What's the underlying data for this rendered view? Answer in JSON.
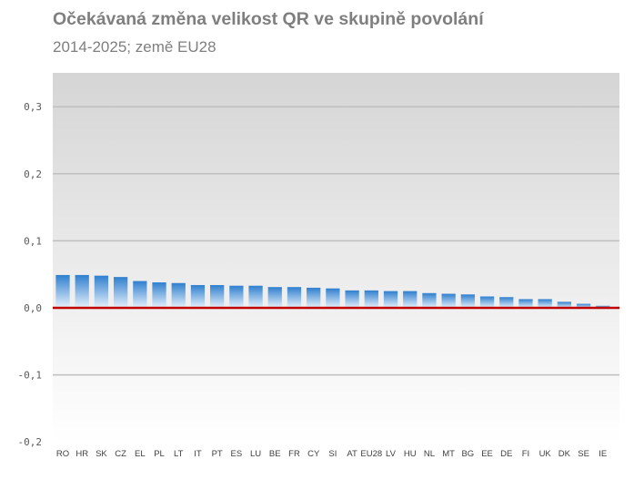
{
  "chart_data": {
    "type": "bar",
    "title": "Očekávaná změna velikost QR ve skupině povolání",
    "subtitle": "2014-2025; země EU28",
    "categories": [
      "RO",
      "HR",
      "SK",
      "CZ",
      "EL",
      "PL",
      "LT",
      "IT",
      "PT",
      "ES",
      "LU",
      "BE",
      "FR",
      "CY",
      "SI",
      "AT",
      "EU28",
      "LV",
      "HU",
      "NL",
      "MT",
      "BG",
      "EE",
      "DE",
      "FI",
      "UK",
      "DK",
      "SE",
      "IE"
    ],
    "values": [
      0.049,
      0.049,
      0.048,
      0.046,
      0.04,
      0.038,
      0.037,
      0.034,
      0.034,
      0.033,
      0.033,
      0.031,
      0.031,
      0.03,
      0.029,
      0.026,
      0.026,
      0.025,
      0.025,
      0.022,
      0.021,
      0.02,
      0.017,
      0.016,
      0.013,
      0.013,
      0.009,
      0.006,
      0.003
    ],
    "yticks": [
      "0,3",
      "0,2",
      "0,1",
      "0,0",
      "-0,1",
      "-0,2"
    ],
    "ylim": [
      -0.2,
      0.35
    ],
    "grid": true,
    "legend": "none",
    "colors": {
      "bar_top": "#2f7fcf",
      "bar_bottom": "#e6f1fb",
      "zero_line": "#c00000",
      "grid": "#bfbfbf"
    }
  }
}
